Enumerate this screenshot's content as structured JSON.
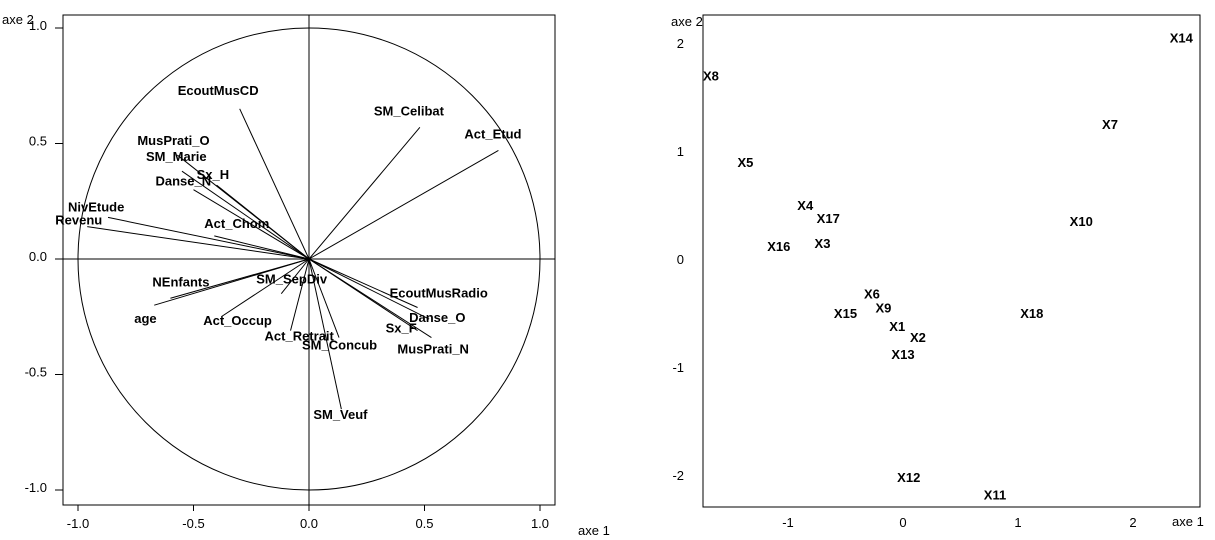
{
  "chart_data": [
    {
      "type": "scatter",
      "subtype": "correlation-circle",
      "xlabel": "axe 1",
      "ylabel": "axe 2",
      "xlim": [
        -1.0,
        1.0
      ],
      "ylim": [
        -1.0,
        1.0
      ],
      "x_ticks": [
        "-1.0",
        "-0.5",
        "0.0",
        "0.5",
        "1.0"
      ],
      "y_ticks": [
        "1.0",
        "0.5",
        "0.0",
        "-0.5",
        "-1.0"
      ],
      "unit_circle": true,
      "variables": [
        {
          "name": "EcoutMusCD",
          "x": -0.3,
          "y": 0.65
        },
        {
          "name": "SM_Celibat",
          "x": 0.48,
          "y": 0.57
        },
        {
          "name": "Act_Etud",
          "x": 0.82,
          "y": 0.47
        },
        {
          "name": "MusPrati_O",
          "x": -0.57,
          "y": 0.45
        },
        {
          "name": "SM_Marie",
          "x": -0.55,
          "y": 0.38
        },
        {
          "name": "Sx_H",
          "x": -0.4,
          "y": 0.32
        },
        {
          "name": "Danse_N",
          "x": -0.5,
          "y": 0.3
        },
        {
          "name": "NivEtude",
          "x": -0.87,
          "y": 0.18
        },
        {
          "name": "Revenu",
          "x": -0.96,
          "y": 0.14
        },
        {
          "name": "Act_Chom",
          "x": -0.41,
          "y": 0.1
        },
        {
          "name": "SM_SepDiv",
          "x": -0.12,
          "y": -0.15
        },
        {
          "name": "NEnfants",
          "x": -0.6,
          "y": -0.17
        },
        {
          "name": "age",
          "x": -0.67,
          "y": -0.2
        },
        {
          "name": "Act_Occup",
          "x": -0.38,
          "y": -0.25
        },
        {
          "name": "Act_Retrait",
          "x": -0.08,
          "y": -0.31
        },
        {
          "name": "SM_Concub",
          "x": 0.13,
          "y": -0.34
        },
        {
          "name": "SM_Veuf",
          "x": 0.14,
          "y": -0.65
        },
        {
          "name": "EcoutMusRadio",
          "x": 0.47,
          "y": -0.21
        },
        {
          "name": "Danse_O",
          "x": 0.52,
          "y": -0.26
        },
        {
          "name": "Sx_F",
          "x": 0.47,
          "y": -0.31
        },
        {
          "name": "MusPrati_N",
          "x": 0.53,
          "y": -0.34
        }
      ]
    },
    {
      "type": "scatter",
      "xlabel": "axe 1",
      "ylabel": "axe 2",
      "xlim": [
        -1.7,
        2.4
      ],
      "ylim": [
        -2.25,
        2.25
      ],
      "x_ticks": [
        "-1",
        "0",
        "1",
        "2"
      ],
      "y_ticks": [
        "2",
        "1",
        "0",
        "-1",
        "-2"
      ],
      "points": [
        {
          "label": "X14",
          "x": 2.42,
          "y": 2.05
        },
        {
          "label": "X8",
          "x": -1.67,
          "y": 1.7
        },
        {
          "label": "X7",
          "x": 1.8,
          "y": 1.25
        },
        {
          "label": "X5",
          "x": -1.37,
          "y": 0.9
        },
        {
          "label": "X4",
          "x": -0.85,
          "y": 0.5
        },
        {
          "label": "X17",
          "x": -0.65,
          "y": 0.38
        },
        {
          "label": "X10",
          "x": 1.55,
          "y": 0.35
        },
        {
          "label": "X3",
          "x": -0.7,
          "y": 0.15
        },
        {
          "label": "X16",
          "x": -1.08,
          "y": 0.12
        },
        {
          "label": "X6",
          "x": -0.27,
          "y": -0.32
        },
        {
          "label": "X9",
          "x": -0.17,
          "y": -0.45
        },
        {
          "label": "X15",
          "x": -0.5,
          "y": -0.5
        },
        {
          "label": "X18",
          "x": 1.12,
          "y": -0.5
        },
        {
          "label": "X1",
          "x": -0.05,
          "y": -0.62
        },
        {
          "label": "X2",
          "x": 0.13,
          "y": -0.72
        },
        {
          "label": "X13",
          "x": 0.0,
          "y": -0.88
        },
        {
          "label": "X12",
          "x": 0.05,
          "y": -2.02
        },
        {
          "label": "X11",
          "x": 0.8,
          "y": -2.18
        }
      ]
    }
  ]
}
